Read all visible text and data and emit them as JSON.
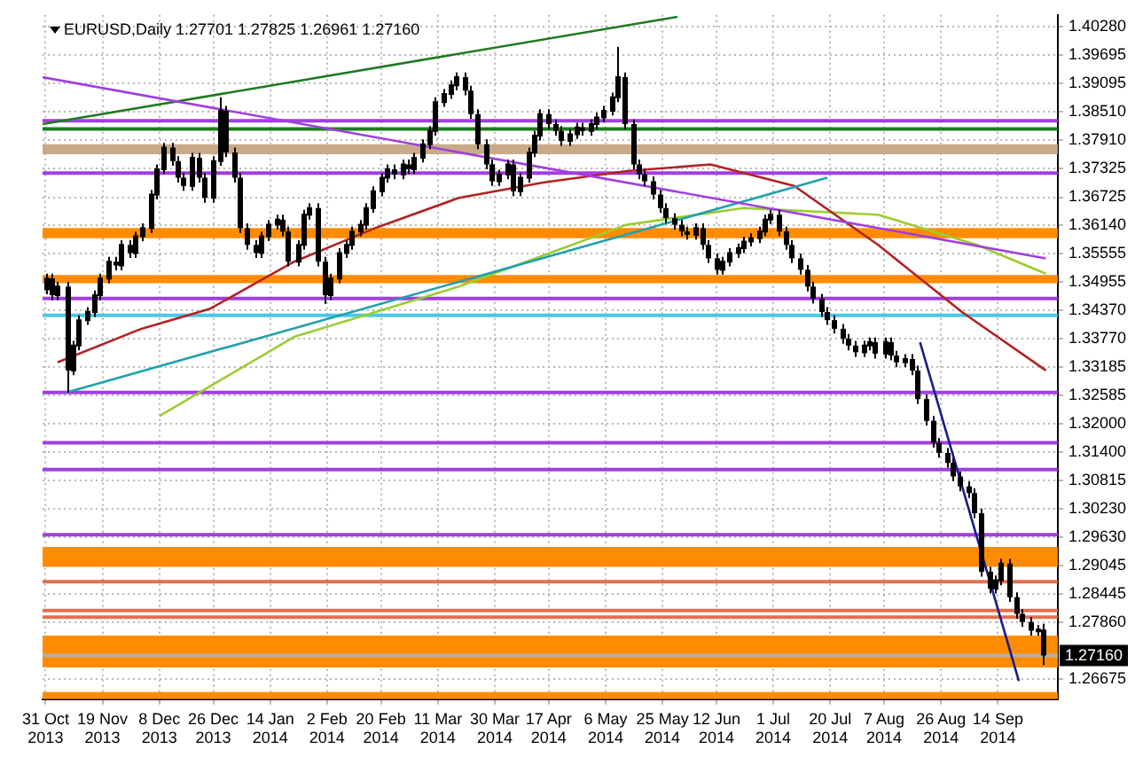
{
  "chart_data": {
    "type": "candlestick",
    "title": "EURUSD,Daily 1.27701 1.27825 1.26961 1.27160",
    "color": "#000000",
    "grid": true,
    "xlim": [
      "2013-10-30",
      "2014-10-04"
    ],
    "xticks": [
      {
        "value": "2013-10-31",
        "label": "31 Oct 2013"
      },
      {
        "value": "2013-11-19",
        "label": "19 Nov 2013"
      },
      {
        "value": "2013-12-08",
        "label": "8 Dec 2013"
      },
      {
        "value": "2013-12-26",
        "label": "26 Dec 2013"
      },
      {
        "value": "2014-01-14",
        "label": "14 Jan 2014"
      },
      {
        "value": "2014-02-02",
        "label": "2 Feb 2014"
      },
      {
        "value": "2014-02-20",
        "label": "20 Feb 2014"
      },
      {
        "value": "2014-03-11",
        "label": "11 Mar 2014"
      },
      {
        "value": "2014-03-30",
        "label": "30 Mar 2014"
      },
      {
        "value": "2014-04-17",
        "label": "17 Apr 2014"
      },
      {
        "value": "2014-05-06",
        "label": "6 May 2014"
      },
      {
        "value": "2014-05-25",
        "label": "25 May 2014"
      },
      {
        "value": "2014-06-12",
        "label": "12 Jun 2014"
      },
      {
        "value": "2014-07-01",
        "label": "1 Jul 2014"
      },
      {
        "value": "2014-07-20",
        "label": "20 Jul 2014"
      },
      {
        "value": "2014-08-07",
        "label": "7 Aug 2014"
      },
      {
        "value": "2014-08-26",
        "label": "26 Aug 2014"
      },
      {
        "value": "2014-09-14",
        "label": "14 Sep 2014"
      }
    ],
    "ylim": [
      1.2625,
      1.4053
    ],
    "yticks": [
      {
        "value": 1.4028,
        "label": "1.40280"
      },
      {
        "value": 1.39695,
        "label": "1.39695"
      },
      {
        "value": 1.39095,
        "label": "1.39095"
      },
      {
        "value": 1.3851,
        "label": "1.38510"
      },
      {
        "value": 1.3791,
        "label": "1.37910"
      },
      {
        "value": 1.37325,
        "label": "1.37325"
      },
      {
        "value": 1.36725,
        "label": "1.36725"
      },
      {
        "value": 1.3614,
        "label": "1.36140"
      },
      {
        "value": 1.35555,
        "label": "1.35555"
      },
      {
        "value": 1.34955,
        "label": "1.34955"
      },
      {
        "value": 1.3437,
        "label": "1.34370"
      },
      {
        "value": 1.3377,
        "label": "1.33770"
      },
      {
        "value": 1.33185,
        "label": "1.33185"
      },
      {
        "value": 1.32585,
        "label": "1.32585"
      },
      {
        "value": 1.32,
        "label": "1.32000"
      },
      {
        "value": 1.314,
        "label": "1.31400"
      },
      {
        "value": 1.30815,
        "label": "1.30815"
      },
      {
        "value": 1.3023,
        "label": "1.30230"
      },
      {
        "value": 1.2963,
        "label": "1.29630"
      },
      {
        "value": 1.29045,
        "label": "1.29045"
      },
      {
        "value": 1.28445,
        "label": "1.28445"
      },
      {
        "value": 1.2786,
        "label": "1.27860"
      },
      {
        "value": 1.26675,
        "label": "1.26675"
      }
    ],
    "x": [
      "2013-10-31",
      "2013-11-02",
      "2013-11-04",
      "2013-11-07",
      "2013-11-09",
      "2013-11-11",
      "2013-11-14",
      "2013-11-16",
      "2013-11-18",
      "2013-11-21",
      "2013-11-23",
      "2013-11-25",
      "2013-11-28",
      "2013-11-30",
      "2013-12-02",
      "2013-12-05",
      "2013-12-07",
      "2013-12-09",
      "2013-12-12",
      "2013-12-14",
      "2013-12-16",
      "2013-12-19",
      "2013-12-21",
      "2013-12-23",
      "2013-12-26",
      "2013-12-28",
      "2013-12-30",
      "2014-01-02",
      "2014-01-04",
      "2014-01-06",
      "2014-01-09",
      "2014-01-11",
      "2014-01-13",
      "2014-01-16",
      "2014-01-18",
      "2014-01-20",
      "2014-01-23",
      "2014-01-25",
      "2014-01-27",
      "2014-01-30",
      "2014-02-01",
      "2014-02-03",
      "2014-02-06",
      "2014-02-08",
      "2014-02-10",
      "2014-02-13",
      "2014-02-15",
      "2014-02-17",
      "2014-02-20",
      "2014-02-22",
      "2014-02-24",
      "2014-02-27",
      "2014-03-01",
      "2014-03-03",
      "2014-03-06",
      "2014-03-08",
      "2014-03-10",
      "2014-03-13",
      "2014-03-15",
      "2014-03-17",
      "2014-03-20",
      "2014-03-22",
      "2014-03-24",
      "2014-03-27",
      "2014-03-29",
      "2014-03-31",
      "2014-04-03",
      "2014-04-05",
      "2014-04-07",
      "2014-04-10",
      "2014-04-12",
      "2014-04-14",
      "2014-04-17",
      "2014-04-19",
      "2014-04-21",
      "2014-04-24",
      "2014-04-26",
      "2014-04-28",
      "2014-05-01",
      "2014-05-03",
      "2014-05-05",
      "2014-05-08",
      "2014-05-10",
      "2014-05-12",
      "2014-05-15",
      "2014-05-17",
      "2014-05-19",
      "2014-05-22",
      "2014-05-24",
      "2014-05-26",
      "2014-05-29",
      "2014-05-31",
      "2014-06-02",
      "2014-06-05",
      "2014-06-07",
      "2014-06-09",
      "2014-06-12",
      "2014-06-14",
      "2014-06-16",
      "2014-06-19",
      "2014-06-21",
      "2014-06-23",
      "2014-06-26",
      "2014-06-28",
      "2014-06-30",
      "2014-07-03",
      "2014-07-05",
      "2014-07-07",
      "2014-07-10",
      "2014-07-12",
      "2014-07-14",
      "2014-07-17",
      "2014-07-19",
      "2014-07-21",
      "2014-07-24",
      "2014-07-26",
      "2014-07-28",
      "2014-07-31",
      "2014-08-02",
      "2014-08-04",
      "2014-08-07",
      "2014-08-09",
      "2014-08-11",
      "2014-08-14",
      "2014-08-16",
      "2014-08-18",
      "2014-08-21",
      "2014-08-23",
      "2014-08-25",
      "2014-08-28",
      "2014-08-30",
      "2014-09-01",
      "2014-09-04",
      "2014-09-06",
      "2014-09-08",
      "2014-09-11",
      "2014-09-13",
      "2014-09-15",
      "2014-09-18",
      "2014-09-20",
      "2014-09-22",
      "2014-09-25",
      "2014-09-27",
      "2014-09-29"
    ],
    "ohlc": [
      [
        1.348,
        1.3513,
        1.347,
        1.3503
      ],
      [
        1.3503,
        1.3513,
        1.3458,
        1.3468
      ],
      [
        1.3468,
        1.3496,
        1.3458,
        1.3486
      ],
      [
        1.3486,
        1.3496,
        1.3265,
        1.3311
      ],
      [
        1.3311,
        1.3373,
        1.3301,
        1.3363
      ],
      [
        1.3363,
        1.3426,
        1.3353,
        1.3416
      ],
      [
        1.3416,
        1.3443,
        1.3406,
        1.3433
      ],
      [
        1.3433,
        1.3478,
        1.3423,
        1.3468
      ],
      [
        1.3468,
        1.3513,
        1.3458,
        1.3503
      ],
      [
        1.3503,
        1.3548,
        1.3493,
        1.3538
      ],
      [
        1.3538,
        1.3548,
        1.352,
        1.353
      ],
      [
        1.353,
        1.3583,
        1.352,
        1.3573
      ],
      [
        1.3573,
        1.3583,
        1.3546,
        1.3556
      ],
      [
        1.3556,
        1.3601,
        1.3546,
        1.3591
      ],
      [
        1.3591,
        1.3618,
        1.3581,
        1.3608
      ],
      [
        1.3608,
        1.3688,
        1.3598,
        1.3678
      ],
      [
        1.3678,
        1.3741,
        1.3668,
        1.3731
      ],
      [
        1.3731,
        1.3786,
        1.3721,
        1.3776
      ],
      [
        1.3776,
        1.3786,
        1.3738,
        1.3748
      ],
      [
        1.3748,
        1.3758,
        1.3703,
        1.3713
      ],
      [
        1.3713,
        1.3723,
        1.3686,
        1.3696
      ],
      [
        1.3696,
        1.3765,
        1.3686,
        1.3755
      ],
      [
        1.3755,
        1.3765,
        1.3703,
        1.3713
      ],
      [
        1.3713,
        1.3723,
        1.3661,
        1.3671
      ],
      [
        1.3671,
        1.3758,
        1.3661,
        1.3748
      ],
      [
        1.3748,
        1.3881,
        1.3738,
        1.3853
      ],
      [
        1.3853,
        1.3863,
        1.3756,
        1.3766
      ],
      [
        1.3766,
        1.3776,
        1.3703,
        1.3713
      ],
      [
        1.3713,
        1.3723,
        1.3598,
        1.3608
      ],
      [
        1.3608,
        1.3618,
        1.3563,
        1.3573
      ],
      [
        1.3573,
        1.3583,
        1.3546,
        1.3556
      ],
      [
        1.3556,
        1.3601,
        1.3546,
        1.3591
      ],
      [
        1.3591,
        1.3625,
        1.3581,
        1.3615
      ],
      [
        1.3615,
        1.3636,
        1.3605,
        1.3626
      ],
      [
        1.3626,
        1.3636,
        1.3591,
        1.3601
      ],
      [
        1.3601,
        1.3611,
        1.3528,
        1.3538
      ],
      [
        1.3538,
        1.3583,
        1.3528,
        1.3573
      ],
      [
        1.3573,
        1.3646,
        1.3563,
        1.3636
      ],
      [
        1.3636,
        1.366,
        1.3626,
        1.365
      ],
      [
        1.365,
        1.366,
        1.3528,
        1.3538
      ],
      [
        1.3538,
        1.3548,
        1.345,
        1.3468
      ],
      [
        1.3468,
        1.3513,
        1.3458,
        1.3503
      ],
      [
        1.3503,
        1.3566,
        1.3493,
        1.3556
      ],
      [
        1.3556,
        1.3583,
        1.3546,
        1.3573
      ],
      [
        1.3573,
        1.3611,
        1.3563,
        1.3601
      ],
      [
        1.3601,
        1.3625,
        1.3591,
        1.3615
      ],
      [
        1.3615,
        1.366,
        1.3605,
        1.365
      ],
      [
        1.365,
        1.3695,
        1.364,
        1.3685
      ],
      [
        1.3685,
        1.3723,
        1.3675,
        1.3713
      ],
      [
        1.3713,
        1.3741,
        1.3703,
        1.3731
      ],
      [
        1.3731,
        1.3741,
        1.371,
        1.372
      ],
      [
        1.372,
        1.3751,
        1.371,
        1.3741
      ],
      [
        1.3741,
        1.3751,
        1.3721,
        1.3731
      ],
      [
        1.3731,
        1.3765,
        1.3721,
        1.3755
      ],
      [
        1.3755,
        1.3793,
        1.3745,
        1.3783
      ],
      [
        1.3783,
        1.3821,
        1.3773,
        1.3811
      ],
      [
        1.3811,
        1.3881,
        1.3801,
        1.3871
      ],
      [
        1.3871,
        1.3898,
        1.3861,
        1.3888
      ],
      [
        1.3888,
        1.3916,
        1.3878,
        1.3906
      ],
      [
        1.3906,
        1.3933,
        1.3896,
        1.3923
      ],
      [
        1.3923,
        1.3933,
        1.3885,
        1.3895
      ],
      [
        1.3895,
        1.3905,
        1.3836,
        1.3846
      ],
      [
        1.3846,
        1.3856,
        1.3773,
        1.3783
      ],
      [
        1.3783,
        1.3793,
        1.3731,
        1.3741
      ],
      [
        1.3741,
        1.3751,
        1.3696,
        1.3706
      ],
      [
        1.3706,
        1.373,
        1.3696,
        1.372
      ],
      [
        1.372,
        1.3751,
        1.371,
        1.3741
      ],
      [
        1.3741,
        1.3751,
        1.3675,
        1.3685
      ],
      [
        1.3685,
        1.3723,
        1.3675,
        1.3713
      ],
      [
        1.3713,
        1.3776,
        1.3703,
        1.3766
      ],
      [
        1.3766,
        1.3811,
        1.3756,
        1.3801
      ],
      [
        1.3801,
        1.3856,
        1.3791,
        1.3846
      ],
      [
        1.3846,
        1.3856,
        1.3815,
        1.3825
      ],
      [
        1.3825,
        1.3835,
        1.3801,
        1.3811
      ],
      [
        1.3811,
        1.3821,
        1.378,
        1.379
      ],
      [
        1.379,
        1.3814,
        1.378,
        1.3804
      ],
      [
        1.3804,
        1.3828,
        1.3794,
        1.3818
      ],
      [
        1.3818,
        1.3828,
        1.3801,
        1.3811
      ],
      [
        1.3811,
        1.3835,
        1.3801,
        1.3825
      ],
      [
        1.3825,
        1.3849,
        1.3815,
        1.3839
      ],
      [
        1.3839,
        1.3863,
        1.3829,
        1.3853
      ],
      [
        1.3853,
        1.3891,
        1.3843,
        1.3881
      ],
      [
        1.3881,
        1.3986,
        1.3871,
        1.3923
      ],
      [
        1.3923,
        1.3933,
        1.3815,
        1.3825
      ],
      [
        1.3825,
        1.3835,
        1.3731,
        1.3741
      ],
      [
        1.3741,
        1.3751,
        1.371,
        1.372
      ],
      [
        1.372,
        1.373,
        1.3696,
        1.3706
      ],
      [
        1.3706,
        1.3716,
        1.3668,
        1.3678
      ],
      [
        1.3678,
        1.3688,
        1.364,
        1.365
      ],
      [
        1.365,
        1.366,
        1.3619,
        1.3629
      ],
      [
        1.3629,
        1.3639,
        1.3605,
        1.3615
      ],
      [
        1.3615,
        1.3625,
        1.3591,
        1.3601
      ],
      [
        1.3601,
        1.3611,
        1.3584,
        1.3594
      ],
      [
        1.3594,
        1.3618,
        1.3584,
        1.3608
      ],
      [
        1.3608,
        1.3618,
        1.3563,
        1.3573
      ],
      [
        1.3573,
        1.3583,
        1.3535,
        1.3545
      ],
      [
        1.3545,
        1.3555,
        1.3511,
        1.3521
      ],
      [
        1.3521,
        1.3548,
        1.3511,
        1.3538
      ],
      [
        1.3538,
        1.3566,
        1.3528,
        1.3556
      ],
      [
        1.3556,
        1.3576,
        1.3546,
        1.3566
      ],
      [
        1.3566,
        1.359,
        1.3556,
        1.358
      ],
      [
        1.358,
        1.3597,
        1.357,
        1.3587
      ],
      [
        1.3587,
        1.3611,
        1.3577,
        1.3601
      ],
      [
        1.3601,
        1.3636,
        1.3591,
        1.3626
      ],
      [
        1.3626,
        1.3646,
        1.3616,
        1.3636
      ],
      [
        1.3636,
        1.3646,
        1.3591,
        1.3601
      ],
      [
        1.3601,
        1.3611,
        1.3563,
        1.3573
      ],
      [
        1.3573,
        1.3583,
        1.3535,
        1.3545
      ],
      [
        1.3545,
        1.3555,
        1.3511,
        1.3521
      ],
      [
        1.3521,
        1.3531,
        1.3476,
        1.3486
      ],
      [
        1.3486,
        1.3496,
        1.3451,
        1.3461
      ],
      [
        1.3461,
        1.3471,
        1.3423,
        1.3433
      ],
      [
        1.3433,
        1.3443,
        1.3406,
        1.3416
      ],
      [
        1.3416,
        1.3426,
        1.3388,
        1.3398
      ],
      [
        1.3398,
        1.3408,
        1.3367,
        1.3377
      ],
      [
        1.3377,
        1.3387,
        1.3353,
        1.3363
      ],
      [
        1.3363,
        1.3373,
        1.3339,
        1.3349
      ],
      [
        1.3349,
        1.3373,
        1.3339,
        1.3363
      ],
      [
        1.3363,
        1.338,
        1.3353,
        1.337
      ],
      [
        1.337,
        1.338,
        1.3336,
        1.3346
      ],
      [
        1.3346,
        1.338,
        1.3336,
        1.337
      ],
      [
        1.337,
        1.338,
        1.3332,
        1.3342
      ],
      [
        1.3342,
        1.3352,
        1.3318,
        1.3328
      ],
      [
        1.3328,
        1.3345,
        1.3318,
        1.3335
      ],
      [
        1.3335,
        1.3345,
        1.3301,
        1.3311
      ],
      [
        1.3311,
        1.3321,
        1.3241,
        1.3251
      ],
      [
        1.3251,
        1.3261,
        1.3196,
        1.3206
      ],
      [
        1.3206,
        1.3216,
        1.315,
        1.316
      ],
      [
        1.316,
        1.317,
        1.3129,
        1.3139
      ],
      [
        1.3139,
        1.3149,
        1.3108,
        1.3118
      ],
      [
        1.3118,
        1.3128,
        1.308,
        1.309
      ],
      [
        1.309,
        1.31,
        1.3059,
        1.3069
      ],
      [
        1.3069,
        1.3079,
        1.3045,
        1.3055
      ],
      [
        1.3055,
        1.3065,
        1.3003,
        1.3013
      ],
      [
        1.3013,
        1.3023,
        1.2881,
        1.2891
      ],
      [
        1.2891,
        1.2901,
        1.2846,
        1.2856
      ],
      [
        1.2856,
        1.2883,
        1.2846,
        1.2873
      ],
      [
        1.2873,
        1.2918,
        1.2863,
        1.2908
      ],
      [
        1.2908,
        1.2918,
        1.2828,
        1.2838
      ],
      [
        1.2838,
        1.2848,
        1.2793,
        1.2803
      ],
      [
        1.2803,
        1.2813,
        1.2776,
        1.2786
      ],
      [
        1.2786,
        1.2796,
        1.2758,
        1.2768
      ],
      [
        1.2768,
        1.278,
        1.2758,
        1.27701
      ],
      [
        1.27701,
        1.27825,
        1.26961,
        1.2716
      ]
    ],
    "series": [
      {
        "type": "line",
        "color": "#a13ee0",
        "x": [
          "2013-10-30",
          "2014-09-30"
        ],
        "values": [
          1.3923,
          1.3545
        ]
      },
      {
        "type": "line",
        "color": "#1e7a1e",
        "x": [
          "2013-10-30",
          "2014-05-30"
        ],
        "values": [
          1.3825,
          1.4049
        ]
      },
      {
        "type": "line",
        "color": "#20a0b0",
        "x": [
          "2013-11-07",
          "2014-07-19"
        ],
        "values": [
          1.3265,
          1.3713
        ]
      },
      {
        "type": "line",
        "color": "#b22222",
        "x": [
          "2013-11-04",
          "2013-12-02",
          "2013-12-25",
          "2014-01-22",
          "2014-02-18",
          "2014-03-18",
          "2014-04-15",
          "2014-05-13",
          "2014-06-10",
          "2014-07-08",
          "2014-08-05",
          "2014-09-02",
          "2014-09-30"
        ],
        "values": [
          1.3328,
          1.3398,
          1.344,
          1.3538,
          1.3608,
          1.3671,
          1.3703,
          1.3727,
          1.3741,
          1.3696,
          1.3573,
          1.3433,
          1.3311
        ]
      },
      {
        "type": "line",
        "color": "#9acd32",
        "x": [
          "2013-12-08",
          "2014-01-22",
          "2014-03-18",
          "2014-05-13",
          "2014-06-21",
          "2014-08-05",
          "2014-09-07",
          "2014-09-30"
        ],
        "values": [
          1.3216,
          1.3381,
          1.3486,
          1.3615,
          1.365,
          1.3636,
          1.3573,
          1.3513
        ]
      },
      {
        "type": "line",
        "color": "#1a1a8c",
        "x": [
          "2014-08-19",
          "2014-09-21"
        ],
        "values": [
          1.337,
          1.2663
        ]
      }
    ],
    "ref_lines": [
      {
        "axis": "y",
        "value": 1.3832,
        "color": "#a13ee0"
      },
      {
        "axis": "y",
        "value": 1.3815,
        "color": "#1e7a1e"
      },
      {
        "axis": "y",
        "value": 1.3723,
        "color": "#a13ee0"
      },
      {
        "axis": "y",
        "value": 1.3461,
        "color": "#a13ee0"
      },
      {
        "axis": "y",
        "value": 1.3426,
        "color": "#48c8e8"
      },
      {
        "axis": "y",
        "value": 1.3265,
        "color": "#a13ee0"
      },
      {
        "axis": "y",
        "value": 1.316,
        "color": "#a13ee0"
      },
      {
        "axis": "y",
        "value": 1.3104,
        "color": "#a13ee0"
      },
      {
        "axis": "y",
        "value": 1.2968,
        "color": "#a13ee0"
      },
      {
        "axis": "y",
        "value": 1.287,
        "color": "#e07050"
      },
      {
        "axis": "y",
        "value": 1.281,
        "color": "#e07050"
      },
      {
        "axis": "y",
        "value": 1.2796,
        "color": "#e07050"
      },
      {
        "axis": "y",
        "value": 1.2716,
        "label": "1.27160",
        "color": "#b0b0b0"
      }
    ],
    "bands": [
      {
        "axis": "y",
        "from": 1.3762,
        "to": 1.3783,
        "color": "#c8aa88"
      },
      {
        "axis": "y",
        "from": 1.3587,
        "to": 1.3608,
        "color": "#ff8c00"
      },
      {
        "axis": "y",
        "from": 1.3493,
        "to": 1.351,
        "color": "#ff8c00"
      },
      {
        "axis": "y",
        "from": 1.2901,
        "to": 1.2943,
        "color": "#ff8c00"
      },
      {
        "axis": "y",
        "from": 1.2691,
        "to": 1.2758,
        "color": "#ff8c00"
      },
      {
        "axis": "y",
        "from": 1.2625,
        "to": 1.264,
        "color": "#ff8c00"
      }
    ]
  }
}
